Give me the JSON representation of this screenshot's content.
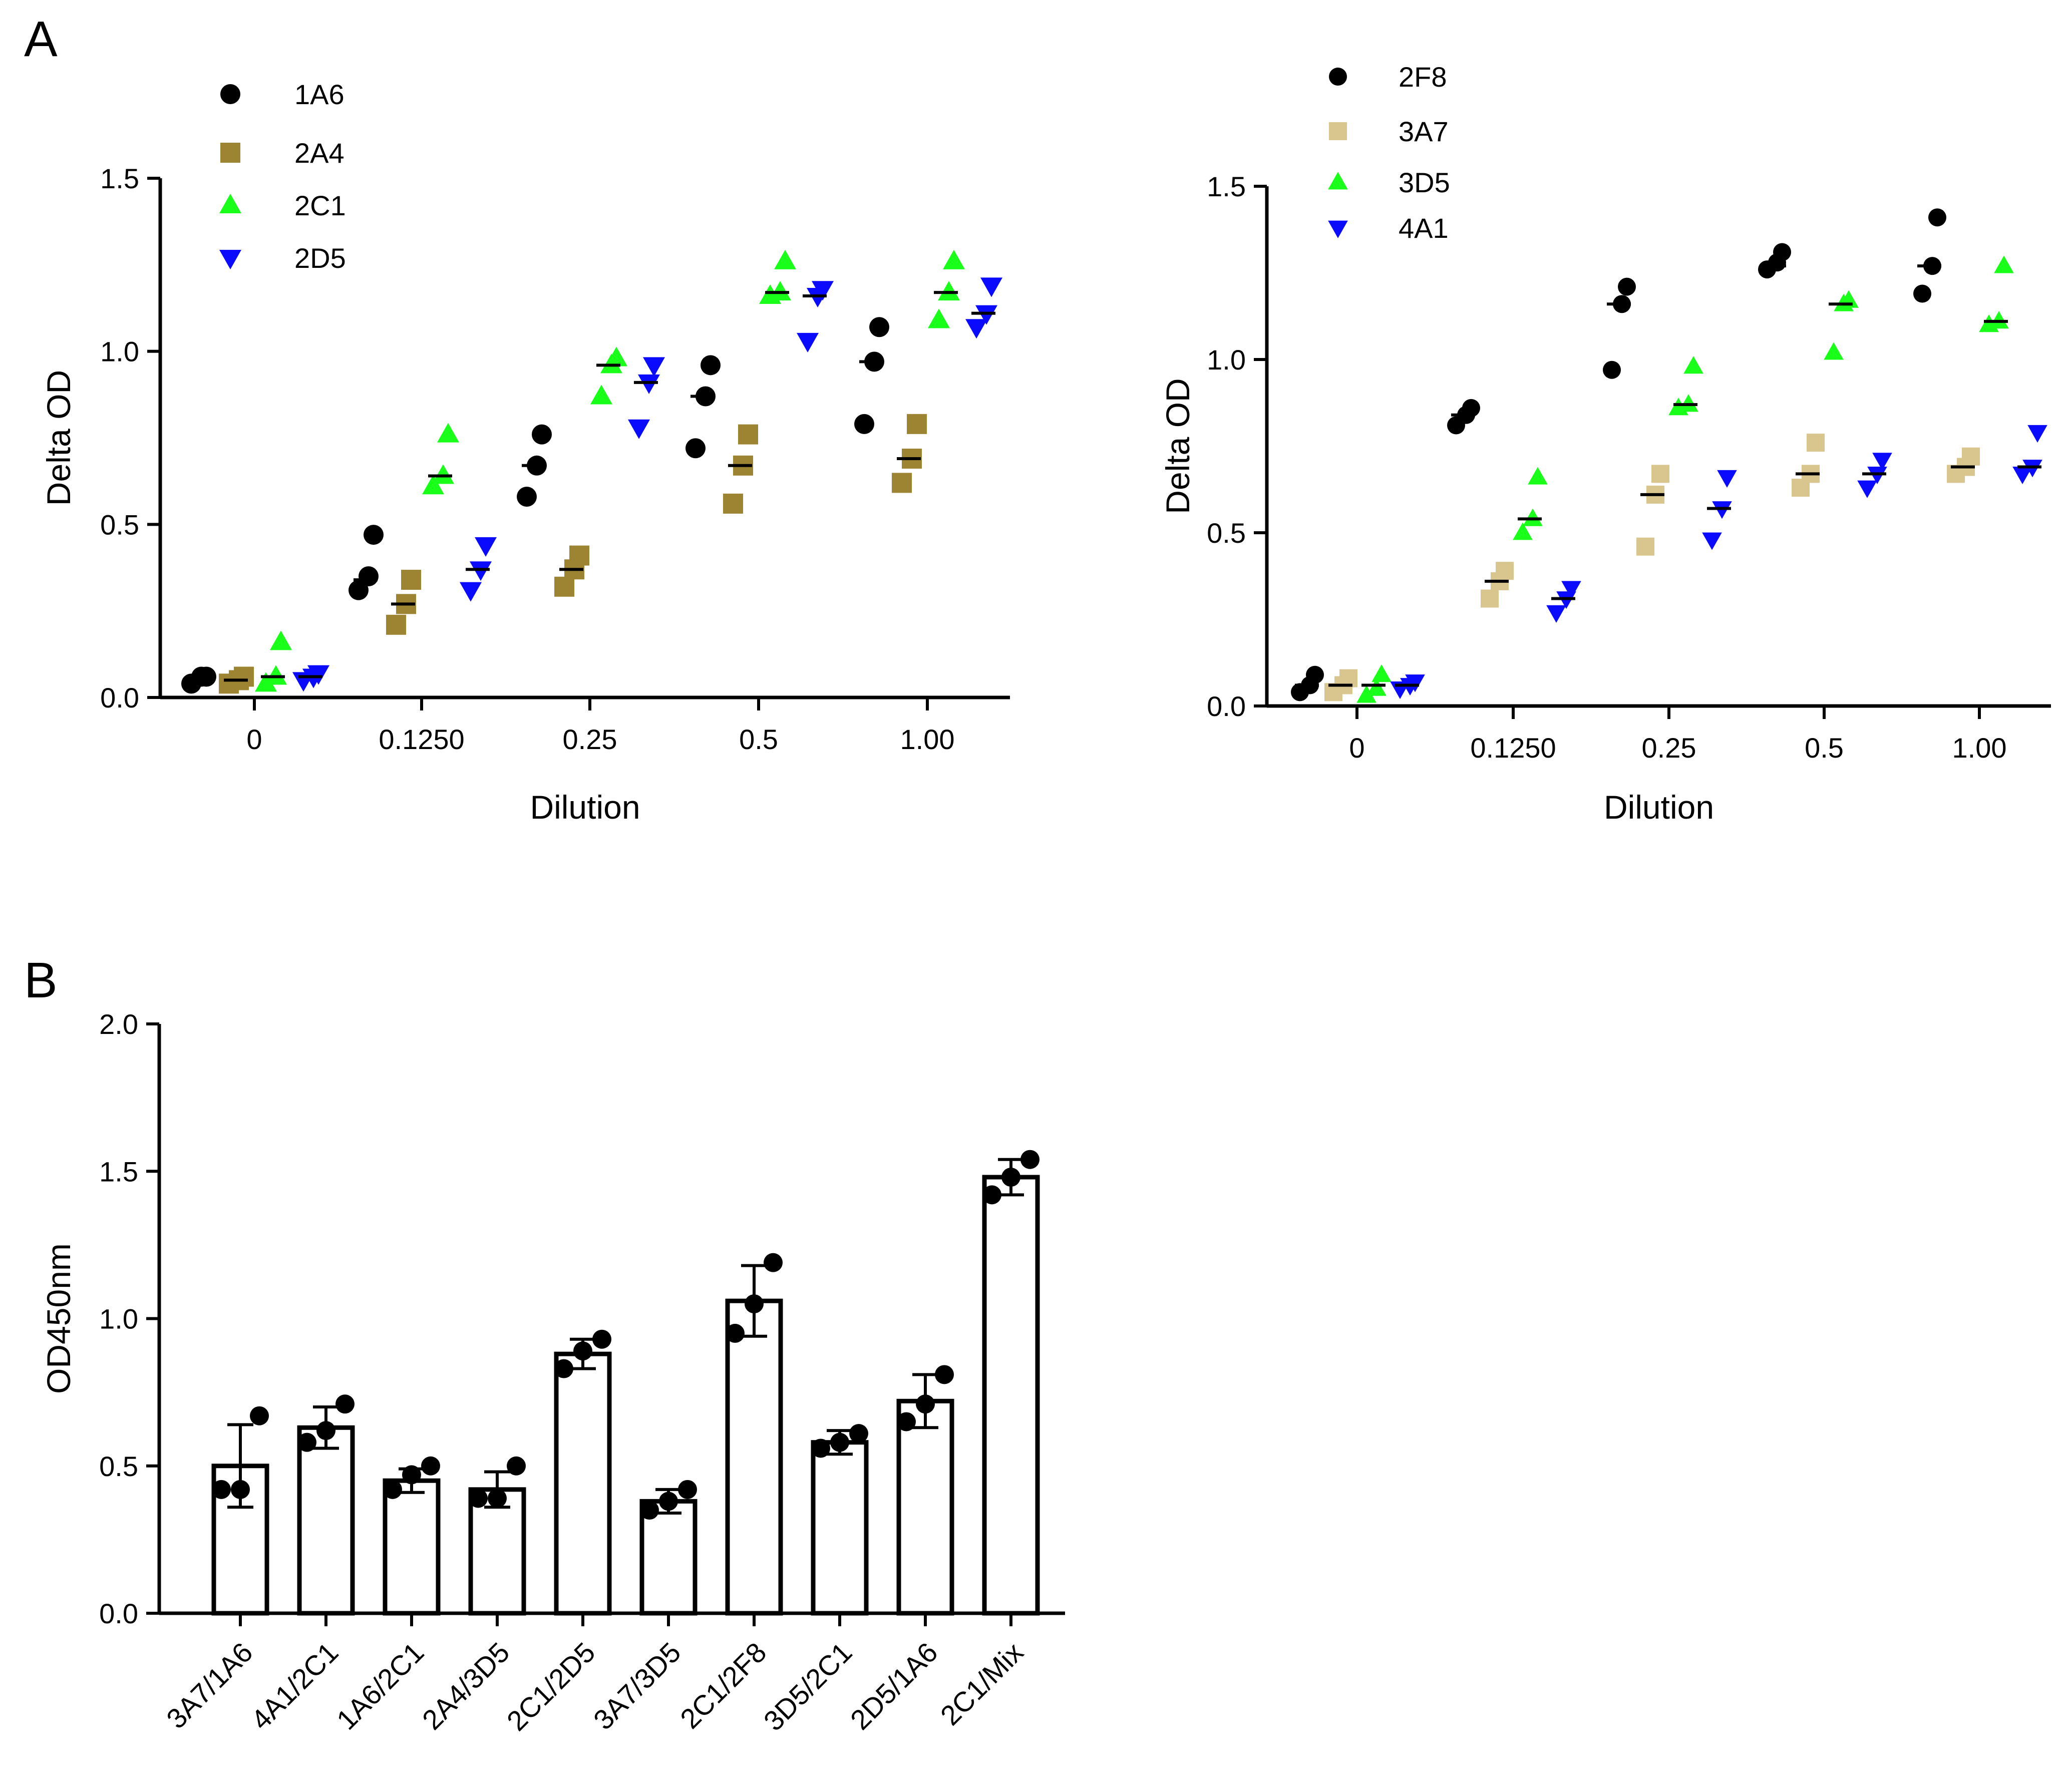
{
  "panels": {
    "a": {
      "label": "A"
    },
    "b": {
      "label": "B"
    }
  },
  "chart_data": [
    {
      "id": "A-left",
      "type": "scatter",
      "panel": "A",
      "title": "",
      "xlabel": "Dilution",
      "ylabel": "Delta OD",
      "categories": [
        "0",
        "0.1250",
        "0.25",
        "0.5",
        "1.00"
      ],
      "ylim": [
        0,
        1.5
      ],
      "yticks": [
        "0.0",
        "0.5",
        "1.0",
        "1.5"
      ],
      "grid": false,
      "legend_position": "top-left",
      "series": [
        {
          "name": "1A6",
          "marker": "circle",
          "color": "#000000",
          "values": [
            [
              0.04,
              0.06,
              0.06
            ],
            [
              0.31,
              0.35,
              0.47
            ],
            [
              0.58,
              0.67,
              0.76
            ],
            [
              0.72,
              0.87,
              0.96
            ],
            [
              0.79,
              0.97,
              1.07
            ]
          ],
          "median": [
            0.06,
            0.34,
            0.67,
            0.87,
            0.97
          ]
        },
        {
          "name": "2A4",
          "marker": "square",
          "color": "#9C8432",
          "values": [
            [
              0.04,
              0.05,
              0.06
            ],
            [
              0.21,
              0.27,
              0.34
            ],
            [
              0.32,
              0.37,
              0.41
            ],
            [
              0.56,
              0.67,
              0.76
            ],
            [
              0.62,
              0.69,
              0.79
            ]
          ],
          "median": [
            0.05,
            0.27,
            0.37,
            0.67,
            0.69
          ]
        },
        {
          "name": "2C1",
          "marker": "triangle-up",
          "color": "#19FF19",
          "values": [
            [
              0.04,
              0.06,
              0.16
            ],
            [
              0.61,
              0.64,
              0.76
            ],
            [
              0.87,
              0.96,
              0.98
            ],
            [
              1.16,
              1.17,
              1.26
            ],
            [
              1.09,
              1.17,
              1.26
            ]
          ],
          "median": [
            0.06,
            0.64,
            0.96,
            1.17,
            1.17
          ]
        },
        {
          "name": "2D5",
          "marker": "triangle-down",
          "color": "#0A0AFF",
          "values": [
            [
              0.05,
              0.06,
              0.07
            ],
            [
              0.31,
              0.37,
              0.44
            ],
            [
              0.78,
              0.91,
              0.96
            ],
            [
              1.03,
              1.16,
              1.18
            ],
            [
              1.07,
              1.11,
              1.19
            ]
          ],
          "median": [
            0.06,
            0.37,
            0.91,
            1.16,
            1.11
          ]
        }
      ]
    },
    {
      "id": "A-right",
      "type": "scatter",
      "panel": "A",
      "title": "",
      "xlabel": "Dilution",
      "ylabel": "Delta OD",
      "categories": [
        "0",
        "0.1250",
        "0.25",
        "0.5",
        "1.00"
      ],
      "ylim": [
        0,
        1.5
      ],
      "yticks": [
        "0.0",
        "0.5",
        "1.0",
        "1.5"
      ],
      "grid": false,
      "legend_position": "top-left",
      "series": [
        {
          "name": "2F8",
          "marker": "circle",
          "color": "#000000",
          "values": [
            [
              0.04,
              0.06,
              0.09
            ],
            [
              0.81,
              0.84,
              0.86
            ],
            [
              0.97,
              1.16,
              1.21
            ],
            [
              1.26,
              1.28,
              1.31
            ],
            [
              1.19,
              1.27,
              1.41
            ]
          ],
          "median": [
            0.06,
            0.84,
            1.16,
            1.27,
            1.27
          ]
        },
        {
          "name": "3A7",
          "marker": "square",
          "color": "#D9C68F",
          "values": [
            [
              0.04,
              0.06,
              0.08
            ],
            [
              0.31,
              0.36,
              0.39
            ],
            [
              0.46,
              0.61,
              0.67
            ],
            [
              0.63,
              0.67,
              0.76
            ],
            [
              0.67,
              0.69,
              0.72
            ]
          ],
          "median": [
            0.06,
            0.36,
            0.61,
            0.67,
            0.69
          ]
        },
        {
          "name": "3D5",
          "marker": "triangle-up",
          "color": "#19FF19",
          "values": [
            [
              0.03,
              0.05,
              0.09
            ],
            [
              0.5,
              0.54,
              0.66
            ],
            [
              0.86,
              0.87,
              0.98
            ],
            [
              1.02,
              1.16,
              1.17
            ],
            [
              1.1,
              1.11,
              1.27
            ]
          ],
          "median": [
            0.06,
            0.54,
            0.87,
            1.16,
            1.11
          ]
        },
        {
          "name": "4A1",
          "marker": "triangle-down",
          "color": "#0A0AFF",
          "values": [
            [
              0.05,
              0.06,
              0.07
            ],
            [
              0.27,
              0.31,
              0.34
            ],
            [
              0.48,
              0.57,
              0.66
            ],
            [
              0.63,
              0.67,
              0.71
            ],
            [
              0.67,
              0.69,
              0.79
            ]
          ],
          "median": [
            0.06,
            0.31,
            0.57,
            0.67,
            0.69
          ]
        }
      ]
    },
    {
      "id": "B",
      "type": "bar",
      "panel": "B",
      "title": "",
      "xlabel": "",
      "ylabel": "OD450nm",
      "ylim": [
        0,
        2.0
      ],
      "yticks": [
        "0.0",
        "0.5",
        "1.0",
        "1.5",
        "2.0"
      ],
      "grid": false,
      "categories": [
        "3A7/1A6",
        "4A1/2C1",
        "1A6/2C1",
        "2A4/3D5",
        "2C1/2D5",
        "3A7/3D5",
        "2C1/2F8",
        "3D5/2C1",
        "2D5/1A6",
        "2C1/Mix"
      ],
      "values": [
        0.5,
        0.63,
        0.45,
        0.42,
        0.88,
        0.38,
        1.06,
        0.58,
        0.72,
        1.48
      ],
      "error": [
        0.14,
        0.07,
        0.04,
        0.06,
        0.05,
        0.04,
        0.12,
        0.04,
        0.09,
        0.06
      ],
      "points": [
        [
          0.42,
          0.42,
          0.67
        ],
        [
          0.58,
          0.62,
          0.71
        ],
        [
          0.42,
          0.47,
          0.5
        ],
        [
          0.39,
          0.39,
          0.5
        ],
        [
          0.83,
          0.89,
          0.93
        ],
        [
          0.35,
          0.38,
          0.42
        ],
        [
          0.95,
          1.05,
          1.19
        ],
        [
          0.56,
          0.58,
          0.61
        ],
        [
          0.65,
          0.71,
          0.81
        ],
        [
          1.42,
          1.48,
          1.54
        ]
      ]
    }
  ]
}
